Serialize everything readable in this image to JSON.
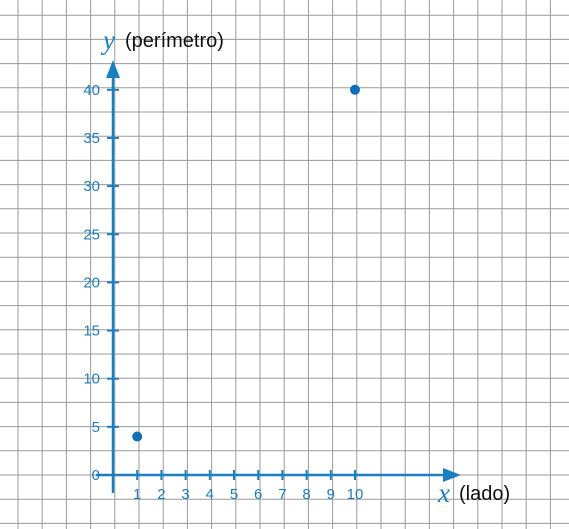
{
  "chart_data": {
    "type": "scatter",
    "title": "",
    "xlabel": {
      "var": "x",
      "text": "(lado)"
    },
    "ylabel": {
      "var": "y",
      "text": "(perímetro)"
    },
    "x_ticks": [
      "1",
      "2",
      "3",
      "4",
      "5",
      "6",
      "7",
      "8",
      "9",
      "10"
    ],
    "y_ticks": [
      "0",
      "5",
      "10",
      "15",
      "20",
      "25",
      "30",
      "35",
      "40"
    ],
    "xlim": [
      0,
      14
    ],
    "ylim": [
      0,
      45
    ],
    "grid": true,
    "points": [
      {
        "x": 1,
        "y": 4
      },
      {
        "x": 10,
        "y": 40
      }
    ],
    "colors": {
      "axis": "#1a7fc1",
      "text": "#1a7fc1",
      "grid": "#9a9a9a",
      "point": "#0d6fb8"
    }
  }
}
